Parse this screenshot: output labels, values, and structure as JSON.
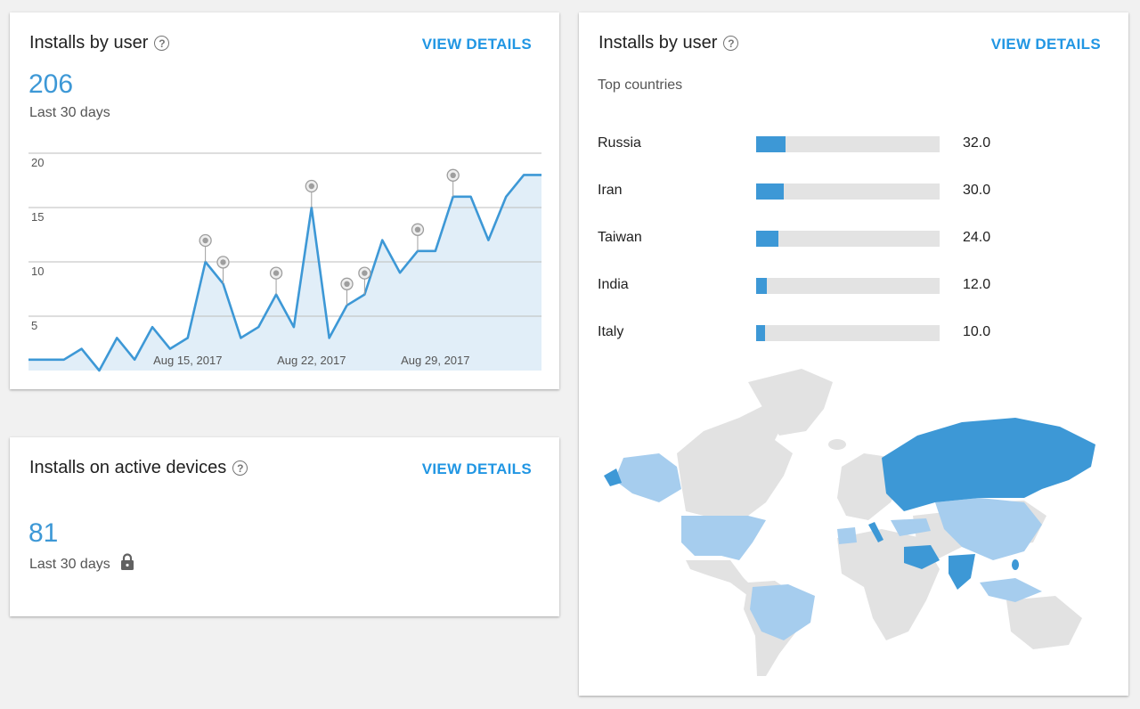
{
  "card_users": {
    "title": "Installs by user",
    "view_details": "VIEW DETAILS",
    "value": "206",
    "period": "Last 30 days"
  },
  "card_devices": {
    "title": "Installs on active devices",
    "view_details": "VIEW DETAILS",
    "value": "81",
    "period": "Last 30 days"
  },
  "card_countries": {
    "title": "Installs by user",
    "view_details": "VIEW DETAILS",
    "subtitle": "Top countries",
    "countries": [
      {
        "name": "Russia",
        "value": "32.0",
        "share": 0.16
      },
      {
        "name": "Iran",
        "value": "30.0",
        "share": 0.15
      },
      {
        "name": "Taiwan",
        "value": "24.0",
        "share": 0.12
      },
      {
        "name": "India",
        "value": "12.0",
        "share": 0.06
      },
      {
        "name": "Italy",
        "value": "10.0",
        "share": 0.05
      }
    ]
  },
  "colors": {
    "accent": "#2196e3",
    "line": "#3d98d6",
    "area": "#e1eef8",
    "grid": "#bdbdbd",
    "map_gray": "#e2e2e2",
    "map_light": "#a6cdee",
    "map_dark": "#3d98d6"
  },
  "icons": {
    "help": "question-circle-icon",
    "lock": "lock-icon",
    "annotation": "annotation-marker-icon"
  },
  "chart_data": {
    "type": "area",
    "title": "",
    "xlabel": "",
    "ylabel": "",
    "ylim": [
      0,
      20
    ],
    "yticks": [
      "20",
      "15",
      "10",
      "5"
    ],
    "xtick_labels": [
      {
        "label": "Aug 15, 2017",
        "x": 9
      },
      {
        "label": "Aug 22, 2017",
        "x": 16
      },
      {
        "label": "Aug 29, 2017",
        "x": 23
      }
    ],
    "x": [
      0,
      1,
      2,
      3,
      4,
      5,
      6,
      7,
      8,
      9,
      10,
      11,
      12,
      13,
      14,
      15,
      16,
      17,
      18,
      19,
      20,
      21,
      22,
      23,
      24,
      25,
      26,
      27,
      28,
      29
    ],
    "values": [
      1,
      1,
      1,
      2,
      0,
      3,
      1,
      4,
      2,
      3,
      10,
      8,
      3,
      4,
      7,
      4,
      15,
      3,
      6,
      7,
      12,
      9,
      11,
      11,
      16,
      16,
      12,
      16,
      18,
      18
    ],
    "annotations": [
      10,
      11,
      14,
      16,
      18,
      19,
      22,
      24
    ]
  }
}
